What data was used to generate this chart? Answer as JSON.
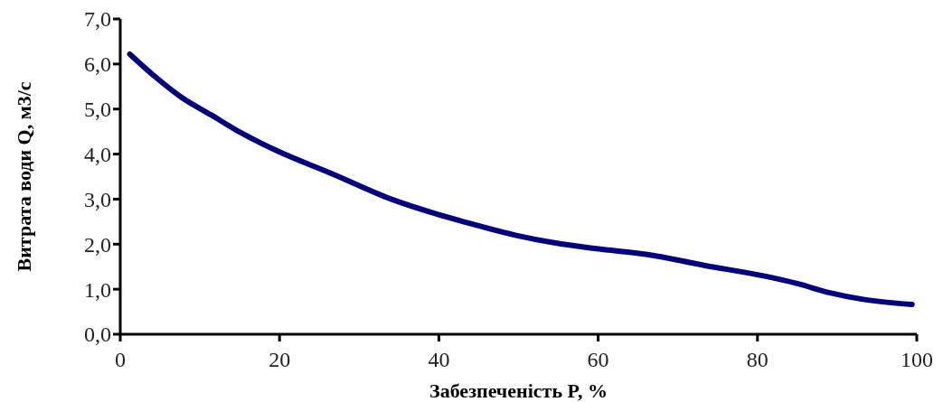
{
  "chart_data": {
    "type": "line",
    "xlabel": "Забезпеченість P, %",
    "ylabel": "Витрата води Q, м3/с",
    "x": [
      1.2,
      4.5,
      7.6,
      11.4,
      15.2,
      19.7,
      26.5,
      34,
      39.7,
      43.7,
      49.6,
      54.5,
      59.8,
      66.2,
      73.3,
      81.2,
      85.1,
      89.1,
      93.1,
      99.4
    ],
    "series": [
      {
        "color": "#000080",
        "values": [
          6.22,
          5.7,
          5.27,
          4.87,
          4.47,
          4.07,
          3.57,
          3.0,
          2.67,
          2.47,
          2.2,
          2.03,
          1.9,
          1.77,
          1.53,
          1.28,
          1.12,
          0.92,
          0.78,
          0.66
        ]
      }
    ],
    "xlim": [
      0,
      100
    ],
    "xticks": [
      0,
      20,
      40,
      60,
      80,
      100
    ],
    "ylim": [
      0,
      7
    ],
    "yticks": [
      {
        "value": 0,
        "label": "0,0"
      },
      {
        "value": 1,
        "label": "1,0"
      },
      {
        "value": 2,
        "label": "2,0"
      },
      {
        "value": 3,
        "label": "3,0"
      },
      {
        "value": 4,
        "label": "4,0"
      },
      {
        "value": 5,
        "label": "5,0"
      },
      {
        "value": 6,
        "label": "6,0"
      },
      {
        "value": 7,
        "label": "7,0"
      }
    ],
    "line_style": "solid"
  }
}
